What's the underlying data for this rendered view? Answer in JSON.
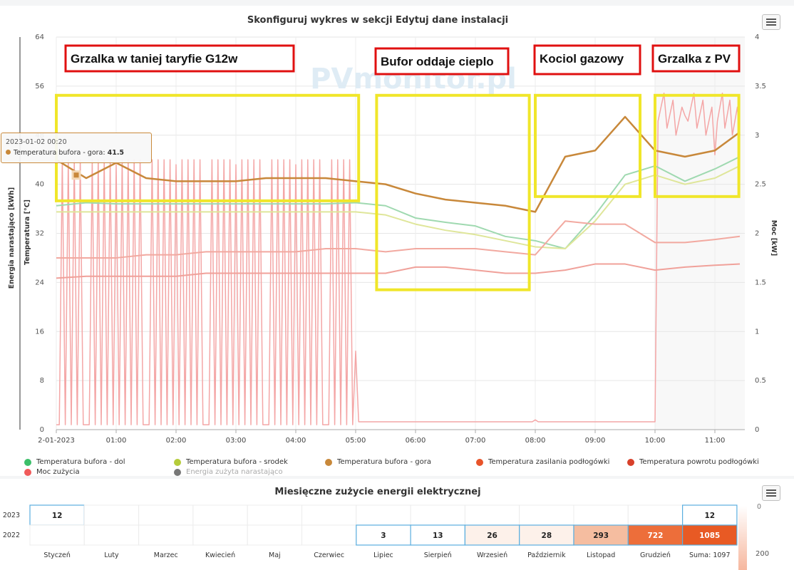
{
  "charts": {
    "main": {
      "title": "Skonfiguruj wykres w sekcji Edytuj dane instalacji",
      "watermark": "PVmonitor.pl",
      "left_axis_label_1": "Energia narastająco [kWh]",
      "left_axis_label_2": "Temperatura [°C]",
      "right_axis_label": "Moc [kW]",
      "left_ticks": [
        "0",
        "8",
        "16",
        "24",
        "32",
        "40",
        "48",
        "56",
        "64"
      ],
      "right_ticks": [
        "0",
        "0.5",
        "1",
        "1.5",
        "2",
        "2.5",
        "3",
        "3.5",
        "4"
      ],
      "x_ticks": [
        "2-01-2023",
        "01:00",
        "02:00",
        "03:00",
        "04:00",
        "05:00",
        "06:00",
        "07:00",
        "08:00",
        "09:00",
        "10:00",
        "11:00"
      ],
      "tooltip": {
        "date": "2023-01-02 00:20",
        "series": "Temperatura bufora - gora",
        "value": "41.5"
      },
      "annotations": [
        "Grzalka w taniej taryfie G12w",
        "Bufor oddaje cieplo",
        "Kociol gazowy",
        "Grzalka z PV"
      ],
      "legend": [
        {
          "label": "Temperatura bufora - dol",
          "color": "#3cbf6a"
        },
        {
          "label": "Temperatura bufora - srodek",
          "color": "#b5cc3a"
        },
        {
          "label": "Temperatura bufora - gora",
          "color": "#c8883a"
        },
        {
          "label": "Temperatura zasilania podłogówki",
          "color": "#e8542a"
        },
        {
          "label": "Temperatura powrotu podłogówki",
          "color": "#d8402a"
        },
        {
          "label": "Moc zużycia",
          "color": "#f05a5a"
        },
        {
          "label": "Energia zużyta narastająco",
          "color": "#777777"
        }
      ]
    },
    "monthly": {
      "title": "Miesięczne zużycie energii elektrycznej",
      "row_labels": [
        "2023",
        "2022"
      ],
      "months": [
        "Styczeń",
        "Luty",
        "Marzec",
        "Kwiecień",
        "Maj",
        "Czerwiec",
        "Lipiec",
        "Sierpień",
        "Wrzesień",
        "Październik",
        "Listopad",
        "Grudzień",
        "Suma: 1097"
      ],
      "row_2023": [
        "12",
        "",
        "",
        "",
        "",
        "",
        "",
        "",
        "",
        "",
        "",
        "",
        "12"
      ],
      "row_2022": [
        "",
        "",
        "",
        "",
        "",
        "",
        "3",
        "13",
        "26",
        "28",
        "293",
        "722",
        "1085"
      ],
      "colorbar_labels": [
        "0",
        "200"
      ]
    }
  },
  "chart_data": [
    {
      "type": "line",
      "title": "Skonfiguruj wykres w sekcji Edytuj dane instalacji",
      "xlabel": "",
      "ylabel": "Temperatura [°C]",
      "y2label": "Moc [kW]",
      "ylim": [
        0,
        64
      ],
      "y2lim": [
        0,
        4
      ],
      "grid": true,
      "legend_position": "bottom",
      "x": [
        "00:00",
        "00:30",
        "01:00",
        "01:30",
        "02:00",
        "02:30",
        "03:00",
        "03:30",
        "04:00",
        "04:30",
        "05:00",
        "05:30",
        "06:00",
        "06:30",
        "07:00",
        "07:30",
        "08:00",
        "08:30",
        "09:00",
        "09:30",
        "10:00",
        "10:30",
        "11:00",
        "11:25"
      ],
      "series": [
        {
          "name": "Temperatura bufora - dol",
          "axis": "left",
          "values": [
            36.5,
            37,
            36.8,
            36.8,
            36.8,
            36.8,
            36.8,
            36.8,
            36.8,
            36.8,
            37,
            36.5,
            34.5,
            33.8,
            33.2,
            31.5,
            30.8,
            29.5,
            35,
            41.5,
            43,
            40.5,
            42.5,
            44.5
          ]
        },
        {
          "name": "Temperatura bufora - srodek",
          "axis": "left",
          "values": [
            35.5,
            35.5,
            35.5,
            35.5,
            35.5,
            35.5,
            35.5,
            35.5,
            35.5,
            35.5,
            35.5,
            35,
            33.5,
            32.5,
            31.8,
            30.8,
            29.8,
            29.5,
            34,
            40,
            41.5,
            40,
            41,
            43
          ]
        },
        {
          "name": "Temperatura bufora - gora",
          "axis": "left",
          "values": [
            44,
            41,
            43.5,
            41,
            40.5,
            40.5,
            40.5,
            41,
            41,
            41,
            40.5,
            40,
            38.5,
            37.5,
            37,
            36.5,
            35.5,
            44.5,
            45.5,
            51,
            45.5,
            44.5,
            45.5,
            48.5
          ]
        },
        {
          "name": "Temperatura zasilania podłogówki",
          "axis": "left",
          "values": [
            28,
            28,
            28,
            28.5,
            28.5,
            29,
            29,
            29,
            29,
            29.5,
            29.5,
            29,
            29.5,
            29.5,
            29.5,
            29,
            28.5,
            34,
            33.5,
            33.5,
            30.5,
            30.5,
            31,
            31.5
          ]
        },
        {
          "name": "Temperatura powrotu podłogówki",
          "axis": "left",
          "values": [
            24.7,
            25,
            25,
            25,
            25,
            25.5,
            25.5,
            25.5,
            25.5,
            25.5,
            25.5,
            25.5,
            26.5,
            26.5,
            26,
            25.5,
            25.5,
            26,
            27,
            27,
            26,
            26.5,
            26.8,
            27
          ]
        },
        {
          "name": "Moc zużycia",
          "axis": "right",
          "values": [
            0.05,
            0.05,
            2.7,
            0.05,
            2.7,
            0.05,
            2.7,
            0.05,
            2.7,
            0.05,
            0.8,
            0.08,
            0.08,
            0.08,
            0.08,
            0.08,
            0.1,
            0.08,
            0.08,
            0.08,
            0.08,
            3.2,
            2.8,
            3.0
          ]
        }
      ]
    },
    {
      "type": "heatmap",
      "title": "Miesięczne zużycie energii elektrycznej",
      "rows": [
        "2023",
        "2022"
      ],
      "columns": [
        "Styczeń",
        "Luty",
        "Marzec",
        "Kwiecień",
        "Maj",
        "Czerwiec",
        "Lipiec",
        "Sierpień",
        "Wrzesień",
        "Październik",
        "Listopad",
        "Grudzień",
        "Suma: 1097"
      ],
      "values": [
        [
          12,
          null,
          null,
          null,
          null,
          null,
          null,
          null,
          null,
          null,
          null,
          null,
          12
        ],
        [
          null,
          null,
          null,
          null,
          null,
          null,
          3,
          13,
          26,
          28,
          293,
          722,
          1085
        ]
      ]
    }
  ]
}
